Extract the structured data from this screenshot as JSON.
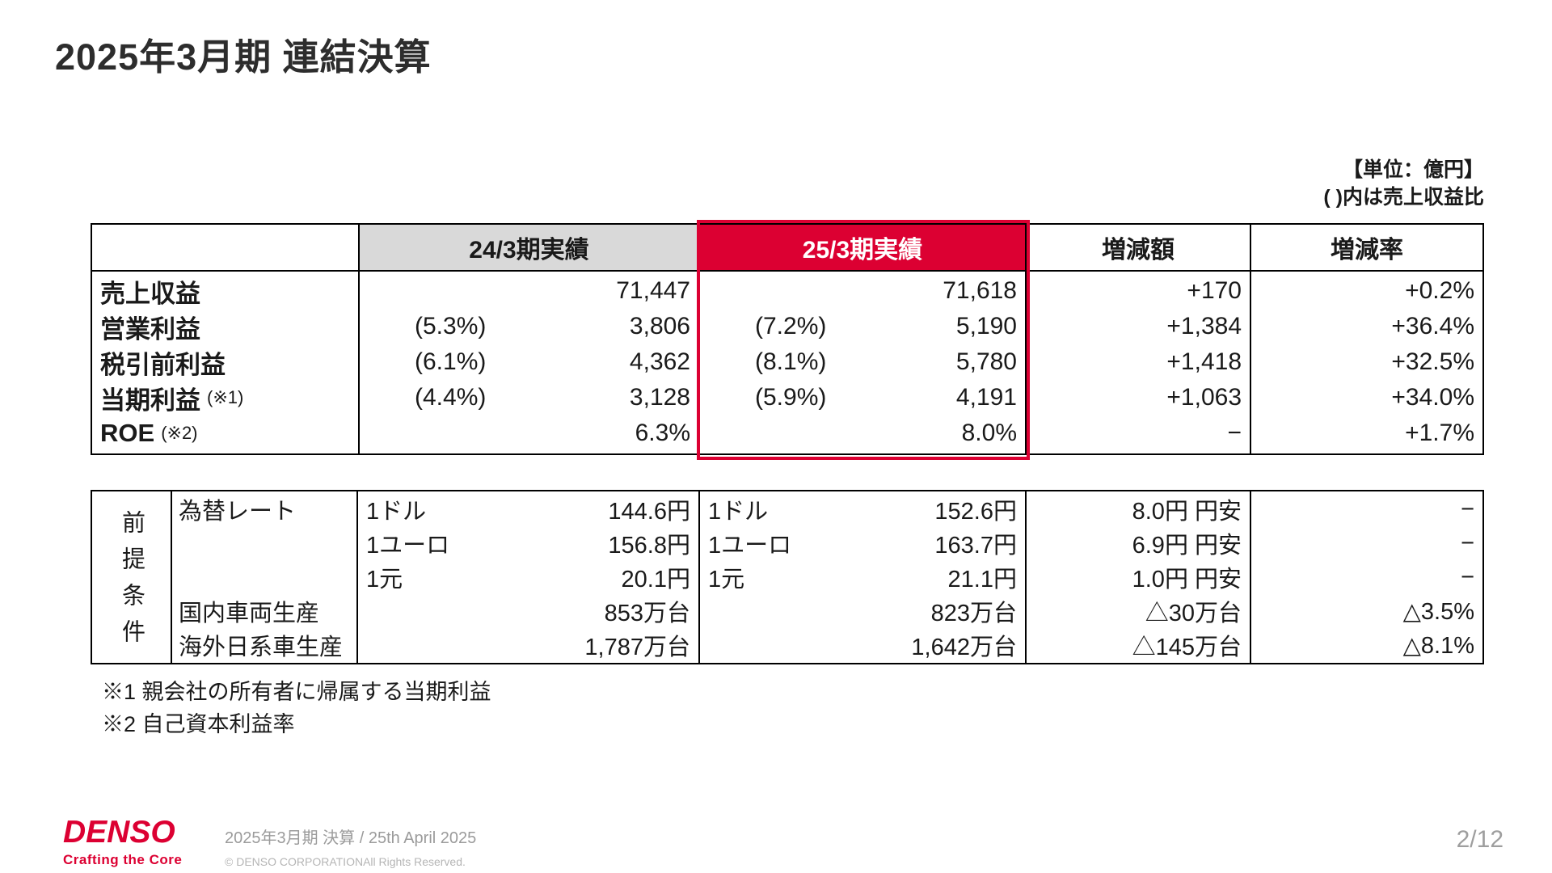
{
  "slide": {
    "title": "2025年3月期 連結決算",
    "unit_note_line1": "【単位：億円】",
    "unit_note_line2": "( )内は売上収益比",
    "page_number": "2/12"
  },
  "table": {
    "headers": {
      "prev": "24/3期実績",
      "cur": "25/3期実績",
      "diff": "増減額",
      "rate": "増減率"
    },
    "rows": [
      {
        "label": "売上収益",
        "label_note": "",
        "prev_pct": "",
        "prev": "71,447",
        "cur_pct": "",
        "cur": "71,618",
        "diff": "+170",
        "rate": "+0.2%"
      },
      {
        "label": "営業利益",
        "label_note": "",
        "prev_pct": "(5.3%)",
        "prev": "3,806",
        "cur_pct": "(7.2%)",
        "cur": "5,190",
        "diff": "+1,384",
        "rate": "+36.4%"
      },
      {
        "label": "税引前利益",
        "label_note": "",
        "prev_pct": "(6.1%)",
        "prev": "4,362",
        "cur_pct": "(8.1%)",
        "cur": "5,780",
        "diff": "+1,418",
        "rate": "+32.5%"
      },
      {
        "label": "当期利益",
        "label_note": "(※1)",
        "prev_pct": "(4.4%)",
        "prev": "3,128",
        "cur_pct": "(5.9%)",
        "cur": "4,191",
        "diff": "+1,063",
        "rate": "+34.0%"
      },
      {
        "label": "ROE",
        "label_note": "(※2)",
        "prev_pct": "",
        "prev": "6.3%",
        "cur_pct": "",
        "cur": "8.0%",
        "diff": "−",
        "rate": "+1.7%"
      }
    ]
  },
  "assumptions": {
    "side_label": "前提条件",
    "rows": [
      {
        "item": "為替レート",
        "prev_unit": "1ドル",
        "prev": "144.6円",
        "cur_unit": "1ドル",
        "cur": "152.6円",
        "diff": "8.0円 円安",
        "rate": "−"
      },
      {
        "item": "",
        "prev_unit": "1ユーロ",
        "prev": "156.8円",
        "cur_unit": "1ユーロ",
        "cur": "163.7円",
        "diff": "6.9円 円安",
        "rate": "−"
      },
      {
        "item": "",
        "prev_unit": "1元",
        "prev": "20.1円",
        "cur_unit": "1元",
        "cur": "21.1円",
        "diff": "1.0円 円安",
        "rate": "−"
      },
      {
        "item": "国内車両生産",
        "prev_unit": "",
        "prev": "853万台",
        "cur_unit": "",
        "cur": "823万台",
        "diff": "△30万台",
        "rate": "△3.5%"
      },
      {
        "item": "海外日系車生産",
        "prev_unit": "",
        "prev": "1,787万台",
        "cur_unit": "",
        "cur": "1,642万台",
        "diff": "△145万台",
        "rate": "△8.1%"
      }
    ]
  },
  "footnotes": {
    "note1": "※1 親会社の所有者に帰属する当期利益",
    "note2": "※2 自己資本利益率"
  },
  "footer": {
    "logo": "DENSO",
    "logo_tagline": "Crafting the Core",
    "date_line": "2025年3月期 決算 / 25th April 2025",
    "copyright": "© DENSO CORPORATIONAll Rights Reserved."
  },
  "colors": {
    "accent_red": "#dc0032",
    "header_gray": "#d9d9d9"
  }
}
